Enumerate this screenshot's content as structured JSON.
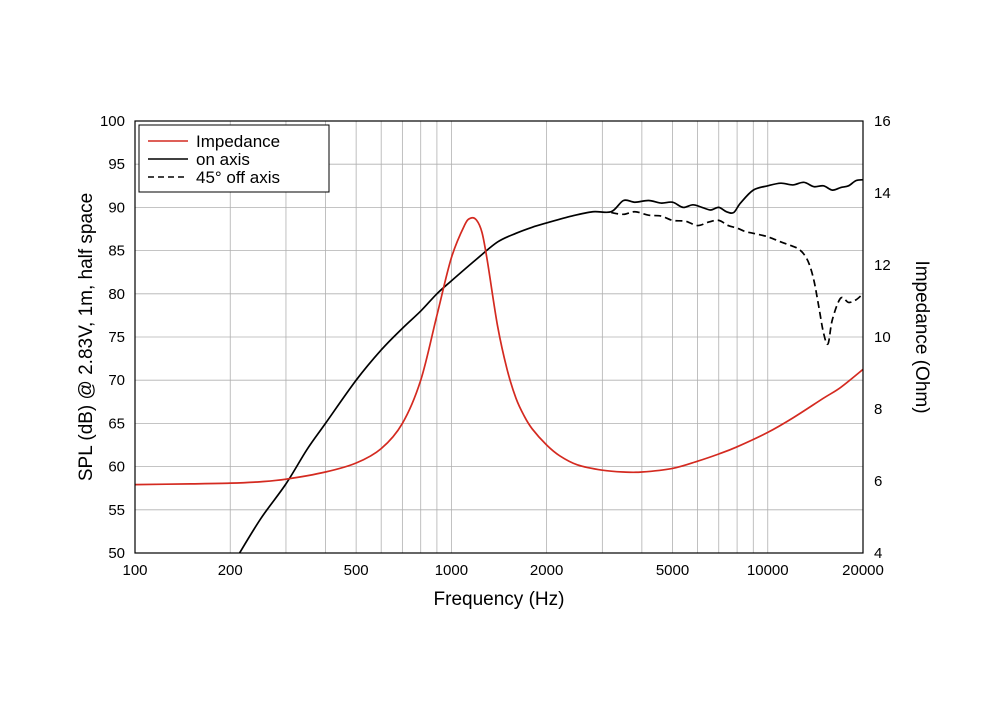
{
  "chart_data": {
    "type": "line",
    "title": "",
    "xlabel": "Frequency (Hz)",
    "ylabel_left": "SPL (dB) @ 2.83V, 1m, half space",
    "ylabel_right": "Impedance (Ohm)",
    "x_scale": "log",
    "xlim": [
      100,
      20000
    ],
    "ylim_left": [
      50,
      100
    ],
    "ylim_right": [
      4,
      16
    ],
    "x_tick_values": [
      100,
      200,
      500,
      1000,
      2000,
      5000,
      10000,
      20000
    ],
    "x_tick_labels": [
      "100",
      "200",
      "500",
      "1000",
      "2000",
      "5000",
      "10000",
      "20000"
    ],
    "y_left_tick_values": [
      50,
      55,
      60,
      65,
      70,
      75,
      80,
      85,
      90,
      95,
      100
    ],
    "y_left_tick_labels": [
      "50",
      "55",
      "60",
      "65",
      "70",
      "75",
      "80",
      "85",
      "90",
      "95",
      "100"
    ],
    "y_right_tick_values": [
      4,
      6,
      8,
      10,
      12,
      14,
      16
    ],
    "y_right_tick_labels": [
      "4",
      "6",
      "8",
      "10",
      "12",
      "14",
      "16"
    ],
    "grid": true,
    "legend_position": "top-left",
    "colors": {
      "impedance": "#d42a20",
      "on_axis": "#000000",
      "off_axis": "#000000",
      "grid": "#b0b0b0"
    },
    "series": [
      {
        "name": "Impedance",
        "axis": "right",
        "style": "solid",
        "x": [
          100,
          150,
          200,
          250,
          300,
          400,
          500,
          600,
          700,
          800,
          900,
          1000,
          1100,
          1150,
          1200,
          1250,
          1300,
          1400,
          1500,
          1600,
          1700,
          1800,
          2000,
          2200,
          2500,
          3000,
          3500,
          4000,
          5000,
          6000,
          7000,
          8000,
          10000,
          12000,
          15000,
          17000,
          20000
        ],
        "y": [
          5.9,
          5.92,
          5.94,
          5.98,
          6.05,
          6.25,
          6.5,
          6.9,
          7.6,
          8.8,
          10.6,
          12.2,
          13.1,
          13.3,
          13.25,
          12.9,
          12.1,
          10.3,
          9.1,
          8.3,
          7.8,
          7.45,
          7.0,
          6.7,
          6.45,
          6.3,
          6.25,
          6.25,
          6.35,
          6.55,
          6.75,
          6.95,
          7.35,
          7.75,
          8.3,
          8.6,
          9.1
        ]
      },
      {
        "name": "on axis",
        "axis": "left",
        "style": "solid",
        "x": [
          210,
          250,
          300,
          350,
          400,
          500,
          600,
          700,
          800,
          900,
          1000,
          1200,
          1400,
          1600,
          1800,
          2000,
          2400,
          2800,
          3200,
          3500,
          3800,
          4200,
          4600,
          5000,
          5400,
          5800,
          6200,
          6600,
          7000,
          7400,
          7800,
          8200,
          9000,
          10000,
          11000,
          12000,
          13000,
          14000,
          15000,
          16000,
          17000,
          18000,
          19000,
          20000
        ],
        "y": [
          49.5,
          54,
          58,
          62,
          65,
          70,
          73.5,
          76,
          78,
          80,
          81.5,
          84,
          86,
          87,
          87.7,
          88.2,
          89,
          89.5,
          89.5,
          90.8,
          90.6,
          90.8,
          90.5,
          90.6,
          90.0,
          90.3,
          90.0,
          89.7,
          90.0,
          89.5,
          89.4,
          90.5,
          92.0,
          92.5,
          92.8,
          92.6,
          92.9,
          92.4,
          92.5,
          92.0,
          92.3,
          92.5,
          93.1,
          93.2
        ]
      },
      {
        "name": "45° off axis",
        "axis": "left",
        "style": "dashed",
        "x": [
          3200,
          3500,
          3800,
          4200,
          4600,
          5000,
          5500,
          6000,
          6500,
          7000,
          7500,
          8000,
          8500,
          9000,
          10000,
          11000,
          12000,
          12500,
          13000,
          13500,
          14000,
          14500,
          15000,
          15500,
          16000,
          17000,
          18000,
          19000,
          20000
        ],
        "y": [
          89.4,
          89.2,
          89.5,
          89.1,
          89.0,
          88.5,
          88.4,
          87.9,
          88.3,
          88.5,
          87.9,
          87.6,
          87.2,
          87.0,
          86.6,
          86.0,
          85.5,
          85.2,
          84.6,
          83.5,
          81.5,
          78.5,
          75.5,
          74.2,
          77.0,
          79.5,
          79.0,
          79.3,
          80.0
        ]
      }
    ]
  }
}
